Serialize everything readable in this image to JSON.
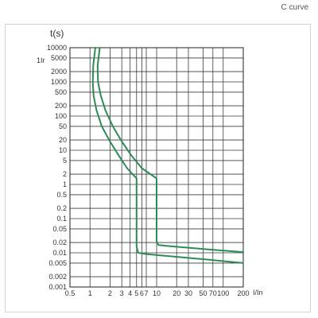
{
  "chart_data": {
    "type": "line",
    "title": "C curve",
    "ylabel": "t(s)",
    "xlabel": "I/In",
    "side_label": "1Ir",
    "xscale": "log",
    "yscale": "log",
    "xlim": [
      0.5,
      200
    ],
    "ylim": [
      0.001,
      10000
    ],
    "grid": true,
    "legend": "none",
    "line_color": "#2e8b57",
    "x_ticks": [
      {
        "value": 0.5,
        "label": "0.5"
      },
      {
        "value": 1,
        "label": "1"
      },
      {
        "value": 2,
        "label": "2"
      },
      {
        "value": 3,
        "label": "3"
      },
      {
        "value": 4,
        "label": "4"
      },
      {
        "value": 5,
        "label": "5"
      },
      {
        "value": 6,
        "label": "6"
      },
      {
        "value": 7,
        "label": "7"
      },
      {
        "value": 10,
        "label": "10"
      },
      {
        "value": 20,
        "label": "20"
      },
      {
        "value": 30,
        "label": "30"
      },
      {
        "value": 50,
        "label": "50"
      },
      {
        "value": 70,
        "label": "70"
      },
      {
        "value": 100,
        "label": "100"
      },
      {
        "value": 200,
        "label": "200"
      }
    ],
    "y_ticks": [
      {
        "value": 10000,
        "label": "10000"
      },
      {
        "value": 5000,
        "label": "5000"
      },
      {
        "value": 2000,
        "label": "2000"
      },
      {
        "value": 1000,
        "label": "1000"
      },
      {
        "value": 500,
        "label": "500"
      },
      {
        "value": 200,
        "label": "200"
      },
      {
        "value": 100,
        "label": "100"
      },
      {
        "value": 50,
        "label": "50"
      },
      {
        "value": 20,
        "label": "20"
      },
      {
        "value": 10,
        "label": "10"
      },
      {
        "value": 5,
        "label": "5"
      },
      {
        "value": 2,
        "label": "2"
      },
      {
        "value": 1,
        "label": "1"
      },
      {
        "value": 0.5,
        "label": "0.5"
      },
      {
        "value": 0.2,
        "label": "0.2"
      },
      {
        "value": 0.1,
        "label": "0.1"
      },
      {
        "value": 0.05,
        "label": "0.05"
      },
      {
        "value": 0.02,
        "label": "0.02"
      },
      {
        "value": 0.01,
        "label": "0.01"
      },
      {
        "value": 0.005,
        "label": "0.005"
      },
      {
        "value": 0.002,
        "label": "0.002"
      },
      {
        "value": 0.001,
        "label": "0.001"
      }
    ],
    "series": [
      {
        "points": [
          [
            1.2,
            10000
          ],
          [
            1.12,
            3000
          ],
          [
            1.1,
            1000
          ],
          [
            1.13,
            400
          ],
          [
            1.25,
            150
          ],
          [
            1.5,
            50
          ],
          [
            2.0,
            18
          ],
          [
            2.7,
            7
          ],
          [
            3.6,
            3
          ],
          [
            5.0,
            1.5
          ],
          [
            5.0,
            0.15
          ],
          [
            5.0,
            0.015
          ],
          [
            5.3,
            0.01
          ],
          [
            7,
            0.0092
          ],
          [
            50,
            0.0065
          ],
          [
            200,
            0.005
          ]
        ]
      },
      {
        "points": [
          [
            1.4,
            10000
          ],
          [
            1.3,
            3000
          ],
          [
            1.32,
            1000
          ],
          [
            1.45,
            400
          ],
          [
            1.7,
            150
          ],
          [
            2.2,
            50
          ],
          [
            3.0,
            18
          ],
          [
            4.2,
            7
          ],
          [
            6.0,
            3
          ],
          [
            10.0,
            1.5
          ],
          [
            10.0,
            0.15
          ],
          [
            10.0,
            0.022
          ],
          [
            10.6,
            0.017
          ],
          [
            14,
            0.016
          ],
          [
            60,
            0.0125
          ],
          [
            200,
            0.0105
          ]
        ]
      }
    ]
  }
}
